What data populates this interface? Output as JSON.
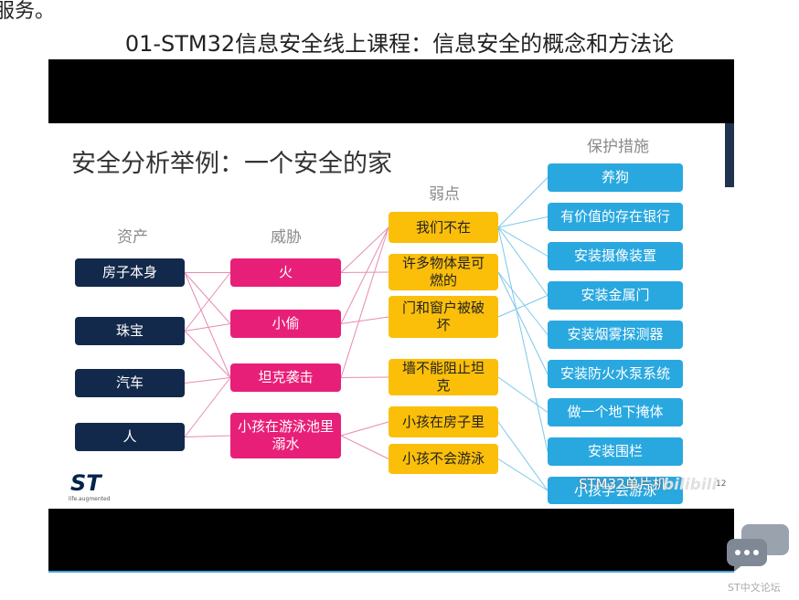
{
  "page": {
    "intro_fragment": "服务。",
    "title": "01-STM32信息安全线上课程：信息安全的概念和方法论"
  },
  "slide": {
    "title": "安全分析举例：一个安全的家",
    "assets": {
      "label": "资产",
      "items": [
        "房子本身",
        "珠宝",
        "汽车",
        "人"
      ]
    },
    "threats": {
      "label": "威胁",
      "items": [
        "火",
        "小偷",
        "坦克袭击",
        "小孩在游泳池里溺水"
      ]
    },
    "weaknesses": {
      "label": "弱点",
      "items": [
        "我们不在",
        "许多物体是可燃的",
        "门和窗户被破坏",
        "墙不能阻止坦克",
        "小孩在房子里",
        "小孩不会游泳"
      ]
    },
    "protections": {
      "label": "保护措施",
      "items": [
        "养狗",
        "有价值的存在银行",
        "安装摄像装置",
        "安装金属门",
        "安装烟雾探测器",
        "安装防火水泵系统",
        "做一个地下掩体",
        "安装围栏",
        "小孩学会游泳"
      ]
    },
    "watermark": "STM32单片机",
    "video_watermark": "bilibili",
    "page_number": "12",
    "logo": "ST",
    "logo_tagline": "life.augmented"
  },
  "forum": {
    "label": "ST中文论坛"
  }
}
